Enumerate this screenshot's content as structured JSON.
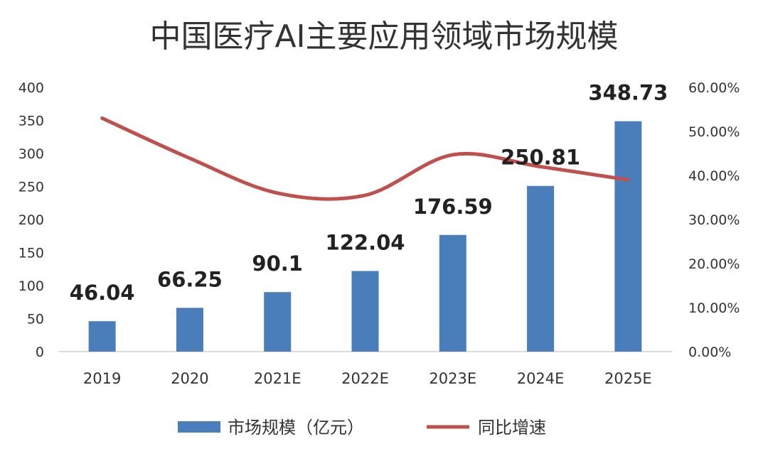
{
  "chart_data": {
    "type": "bar",
    "title": "中国医疗AI主要应用领域市场规模",
    "categories": [
      "2019",
      "2020",
      "2021E",
      "2022E",
      "2023E",
      "2024E",
      "2025E"
    ],
    "series": [
      {
        "name": "市场规模（亿元）",
        "type": "bar",
        "axis": "left",
        "color": "#4a7ebb",
        "values": [
          46.04,
          66.25,
          90.1,
          122.04,
          176.59,
          250.81,
          348.73
        ],
        "labels": [
          "46.04",
          "66.25",
          "90.1",
          "122.04",
          "176.59",
          "250.81",
          "348.73"
        ]
      },
      {
        "name": "同比增速",
        "type": "line",
        "axis": "right",
        "color": "#c0504d",
        "smooth": true,
        "values": [
          0.53,
          0.439,
          0.36,
          0.355,
          0.447,
          0.42,
          0.39
        ]
      }
    ],
    "left_axis": {
      "ylim": [
        0,
        400
      ],
      "ticks": [
        "0",
        "50",
        "100",
        "150",
        "200",
        "250",
        "300",
        "350",
        "400"
      ]
    },
    "right_axis": {
      "ylim": [
        0,
        0.6
      ],
      "ticks": [
        "0.00%",
        "10.00%",
        "20.00%",
        "30.00%",
        "40.00%",
        "50.00%",
        "60.00%"
      ]
    },
    "grid": false,
    "legend": "bottom"
  }
}
